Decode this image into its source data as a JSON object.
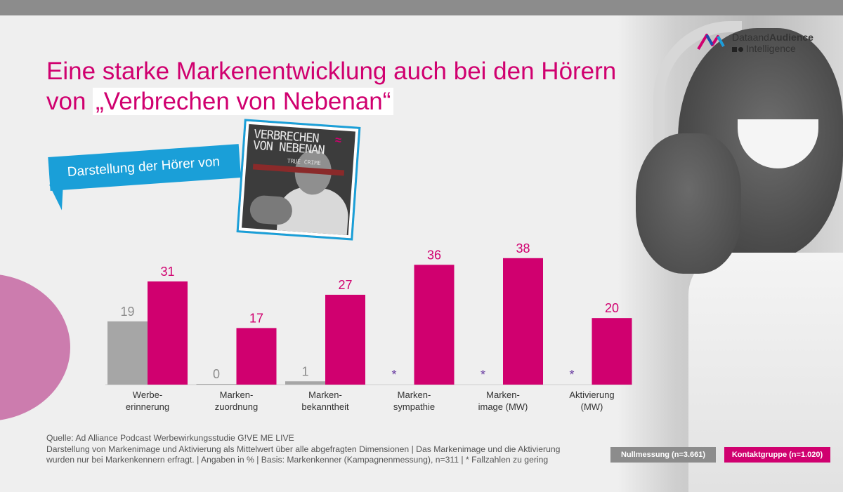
{
  "logo": {
    "line1_regular": "Dataand",
    "line1_bold": "Audience",
    "line2": "Intelligence"
  },
  "title": {
    "line1": "Eine starke Markenentwicklung auch bei den Hörern",
    "line2_prefix": "von ",
    "line2_highlight": "„Verbrechen von Nebenan“"
  },
  "banner": {
    "text": "Darstellung der Hörer von"
  },
  "cover": {
    "title": "VERBRECHEN VON NEBENAN",
    "subtitle": "TRUE CRIME",
    "logo": "≈"
  },
  "chart_data": {
    "type": "bar",
    "categories": [
      "Werbe-\nerinnerung",
      "Marken-\nzuordnung",
      "Marken-\nbekanntheit",
      "Marken-\nsympathie",
      "Marken-\nimage (MW)",
      "Aktivierung\n(MW)"
    ],
    "series": [
      {
        "name": "Nullmessung (n=3.661)",
        "values": [
          19,
          0,
          1,
          null,
          null,
          null
        ],
        "labels": [
          "19",
          "0",
          "1",
          "*",
          "*",
          "*"
        ],
        "color": "#a6a6a6"
      },
      {
        "name": "Kontaktgruppe (n=1.020)",
        "values": [
          31,
          17,
          27,
          36,
          38,
          20
        ],
        "labels": [
          "31",
          "17",
          "27",
          "36",
          "38",
          "20"
        ],
        "color": "#d0006f"
      }
    ],
    "ylim": [
      0,
      40
    ],
    "grid": false,
    "legend_position": "bottom-right"
  },
  "source": {
    "line1": "Quelle: Ad Alliance Podcast Werbewirkungsstudie G!VE ME LIVE",
    "line2": "Darstellung von Markenimage und Aktivierung als Mittelwert über alle abgefragten Dimensionen | Das Markenimage und die Aktivierung",
    "line3": "wurden nur bei Markenkennern erfragt. | Angaben in % | Basis: Markenkenner (Kampagnenmessung), n=311 | * Fallzahlen zu gering"
  },
  "legend": {
    "null": "Nullmessung (n=3.661)",
    "kontakt": "Kontaktgruppe (n=1.020)"
  },
  "colors": {
    "accent": "#d0006f",
    "null_bar": "#a6a6a6",
    "banner": "#1a9fd8",
    "asterisk": "#6a3ea1"
  }
}
